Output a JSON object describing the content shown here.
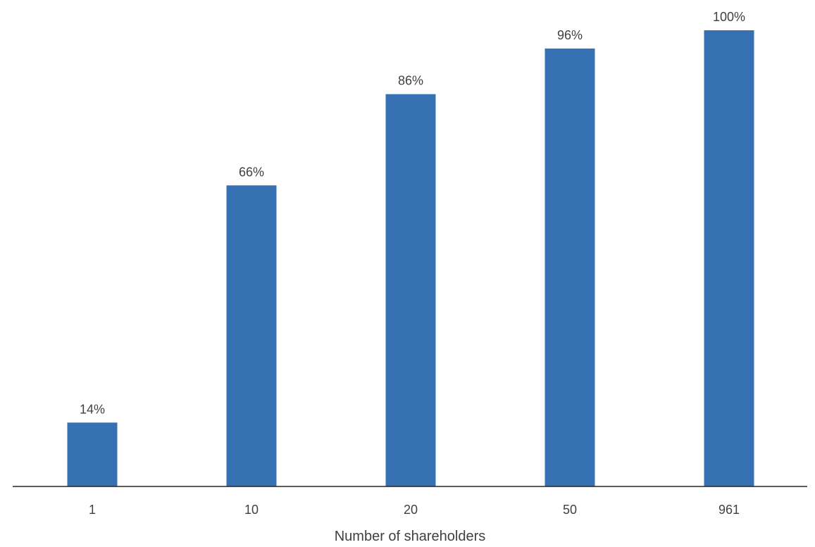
{
  "chart_data": {
    "type": "bar",
    "title": "",
    "xlabel": "Number of shareholders",
    "ylabel": "",
    "categories": [
      "1",
      "10",
      "20",
      "50",
      "961"
    ],
    "values": [
      14,
      66,
      86,
      96,
      100
    ],
    "data_labels": [
      "14%",
      "66%",
      "86%",
      "96%",
      "100%"
    ],
    "ylim": [
      0,
      100
    ],
    "grid": false,
    "legend": "none",
    "colors": {
      "bar": "#3671B3",
      "axis": "#262626",
      "text": "#404040"
    }
  }
}
